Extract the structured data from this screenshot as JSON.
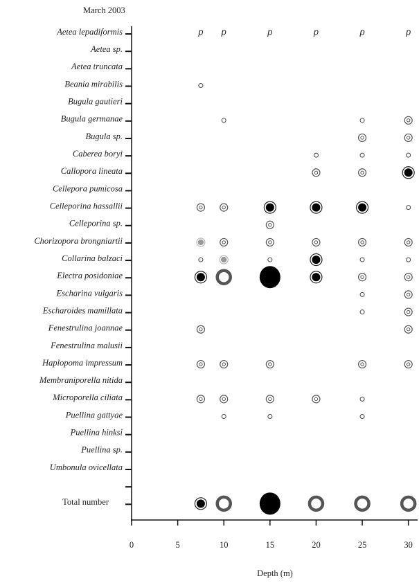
{
  "chart_data": {
    "type": "bubble-matrix",
    "title": "March 2003",
    "xlabel": "Depth (m)",
    "categories": [
      "Aetea lepadiformis",
      "Aetea sp.",
      "Aetea truncata",
      "Beania mirabilis",
      "Bugula gautieri",
      "Bugula germanae",
      "Bugula sp.",
      "Caberea boryi",
      "Callopora lineata",
      "Cellepora pumicosa",
      "Celleporina hassallii",
      "Celleporina sp.",
      "Chorizopora brongniartii",
      "Collarina balzaci",
      "Electra posidoniae",
      "Escharina vulgaris",
      "Escharoides mamillata",
      "Fenestrulina joannae",
      "Fenestrulina malusii",
      "Haplopoma impressum",
      "Membraniporella nitida",
      "Microporella ciliata",
      "Puellina gattyae",
      "Puellina hinksi",
      "Puellina sp.",
      "Umbonula ovicellata",
      null,
      "Total number"
    ],
    "x": [
      7.5,
      10,
      15,
      20,
      25,
      30
    ],
    "values": [
      [
        null,
        null,
        null,
        null,
        null,
        null
      ],
      [
        null,
        null,
        null,
        null,
        null,
        null
      ],
      [
        null,
        null,
        null,
        null,
        null,
        null
      ],
      [
        1,
        null,
        null,
        null,
        null,
        null
      ],
      [
        null,
        null,
        null,
        null,
        null,
        null
      ],
      [
        null,
        1,
        null,
        null,
        1,
        2
      ],
      [
        null,
        null,
        null,
        null,
        2,
        2
      ],
      [
        null,
        null,
        null,
        1,
        1,
        1
      ],
      [
        null,
        null,
        null,
        2,
        2,
        4
      ],
      [
        null,
        null,
        null,
        null,
        null,
        null
      ],
      [
        2,
        2,
        4,
        4,
        4,
        1
      ],
      [
        null,
        null,
        2,
        null,
        null,
        null
      ],
      [
        3,
        2,
        2,
        2,
        2,
        2
      ],
      [
        1,
        3,
        1,
        4,
        1,
        1
      ],
      [
        4,
        5,
        6,
        4,
        2,
        2
      ],
      [
        null,
        null,
        null,
        null,
        1,
        2
      ],
      [
        null,
        null,
        null,
        null,
        1,
        2
      ],
      [
        2,
        null,
        null,
        null,
        null,
        2
      ],
      [
        null,
        null,
        null,
        null,
        null,
        null
      ],
      [
        2,
        2,
        2,
        null,
        2,
        2
      ],
      [
        null,
        null,
        null,
        null,
        null,
        null
      ],
      [
        2,
        2,
        2,
        2,
        1,
        null
      ],
      [
        null,
        1,
        1,
        null,
        1,
        null
      ],
      [
        null,
        null,
        null,
        null,
        null,
        null
      ],
      [
        null,
        null,
        null,
        null,
        null,
        null
      ],
      [
        null,
        null,
        null,
        null,
        null,
        null
      ],
      [
        null,
        null,
        null,
        null,
        null,
        null
      ],
      [
        4,
        5,
        6,
        5,
        5,
        5
      ]
    ],
    "value_labels": [
      [
        "p",
        "p",
        "p",
        "p",
        "p",
        "p"
      ]
    ],
    "xlim": [
      0,
      31
    ],
    "xticks": [
      0,
      5,
      10,
      15,
      20,
      25,
      30
    ]
  }
}
